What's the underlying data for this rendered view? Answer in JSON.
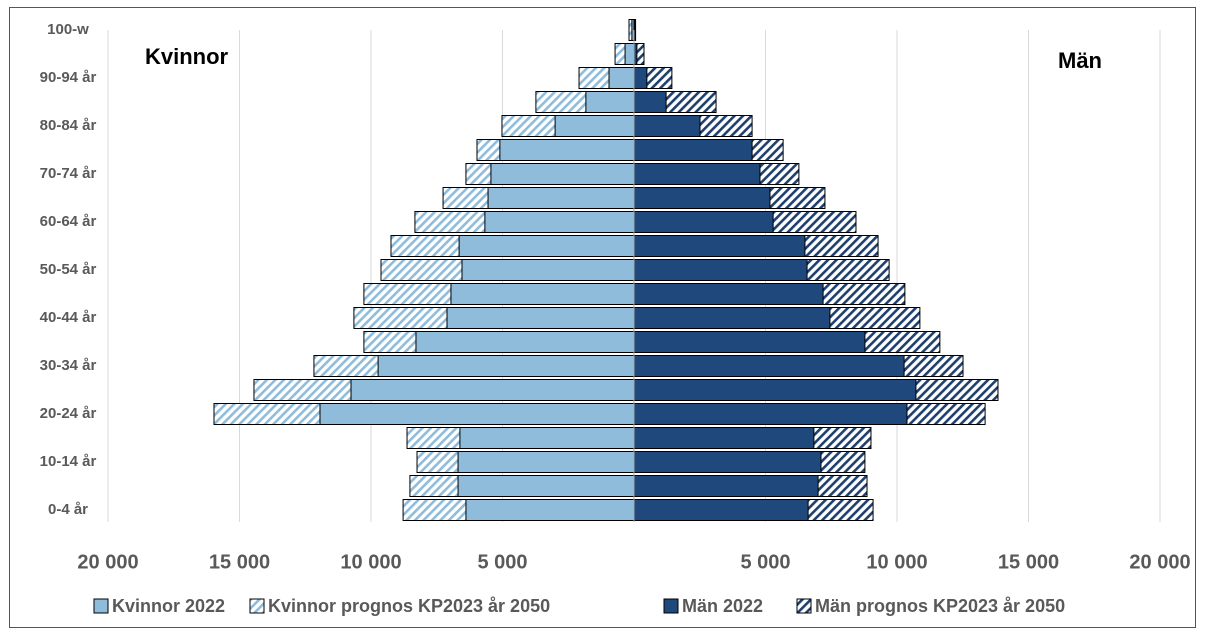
{
  "chart_data": {
    "type": "pyramid",
    "left_title": "Kvinnor",
    "right_title": "Män",
    "categories": [
      "0-4 år",
      null,
      "10-14 år",
      null,
      "20-24 år",
      null,
      "30-34 år",
      null,
      "40-44 år",
      null,
      "50-54 år",
      null,
      "60-64 år",
      null,
      "70-74 år",
      null,
      "80-84 år",
      null,
      "90-94 år",
      null,
      "100-w"
    ],
    "series": [
      {
        "name": "Kvinnor prognos KP2023 år 2050",
        "color": "#8fbcdb",
        "pattern": "hatched",
        "side": "left",
        "values": [
          8780,
          8520,
          8250,
          8630,
          15970,
          14450,
          12170,
          10270,
          10650,
          10270,
          9620,
          9240,
          8330,
          7260,
          6390,
          5970,
          5020,
          3730,
          2090,
          720,
          190
        ]
      },
      {
        "name": "Kvinnor 2022",
        "color": "#8fbcdb",
        "pattern": "solid",
        "side": "left",
        "values": [
          6390,
          6690,
          6690,
          6620,
          11940,
          10760,
          9730,
          8290,
          7110,
          6960,
          6540,
          6650,
          5670,
          5550,
          5440,
          5100,
          3000,
          1830,
          950,
          340,
          80
        ]
      },
      {
        "name": "Män prognos KP2023 år 2050",
        "color": "#1f3f6e",
        "pattern": "hatched",
        "side": "right",
        "values": [
          9090,
          8860,
          8780,
          9010,
          13350,
          13840,
          12510,
          11630,
          10870,
          10300,
          9700,
          9280,
          8440,
          7260,
          6270,
          5670,
          4490,
          3120,
          1440,
          380,
          60
        ]
      },
      {
        "name": "Män 2022",
        "color": "#1f497d",
        "pattern": "solid",
        "side": "right",
        "values": [
          6620,
          7000,
          7110,
          6840,
          10380,
          10720,
          10270,
          8780,
          7450,
          7190,
          6580,
          6500,
          5290,
          5170,
          4790,
          4490,
          2510,
          1220,
          490,
          110,
          40
        ]
      }
    ],
    "legend_order": [
      1,
      0,
      3,
      2
    ],
    "xlim": [
      -20000,
      20000
    ],
    "xticks": [
      {
        "value": -20000,
        "label": "20 000"
      },
      {
        "value": -15000,
        "label": "15 000"
      },
      {
        "value": -10000,
        "label": "10 000"
      },
      {
        "value": -5000,
        "label": "5 000"
      },
      {
        "value": 5000,
        "label": "5 000"
      },
      {
        "value": 10000,
        "label": "10 000"
      },
      {
        "value": 15000,
        "label": "15 000"
      },
      {
        "value": 20000,
        "label": "20 000"
      }
    ],
    "grid": true,
    "legend": "bottom"
  }
}
